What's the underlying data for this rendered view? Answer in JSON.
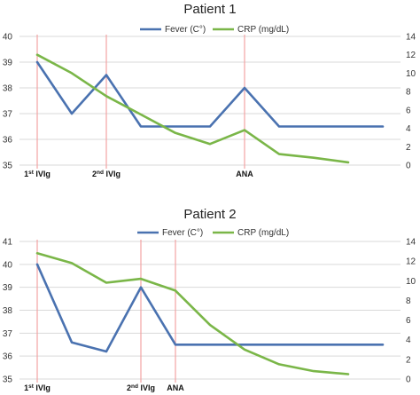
{
  "chart_data": [
    {
      "type": "line",
      "title": "Patient 1",
      "x": [
        1,
        2,
        3,
        4,
        5,
        6,
        7,
        8,
        9,
        10,
        11
      ],
      "series": [
        {
          "name": "Fever (C°)",
          "axis": "left",
          "color": "#4a72b0",
          "values": [
            39,
            37,
            38.5,
            36.5,
            36.5,
            36.5,
            38,
            36.5,
            36.5,
            36.5,
            36.5
          ]
        },
        {
          "name": "CRP (mg/dL)",
          "axis": "right",
          "color": "#7ab648",
          "values": [
            12,
            10,
            7.5,
            5.5,
            3.5,
            2.3,
            3.8,
            1.2,
            0.8,
            0.3,
            null
          ]
        }
      ],
      "y_left": {
        "min": 35,
        "max": 40,
        "ticks": [
          "35",
          "36",
          "37",
          "38",
          "39",
          "40"
        ]
      },
      "y_right": {
        "min": 0,
        "max": 14,
        "ticks": [
          "0",
          "2",
          "4",
          "6",
          "8",
          "10",
          "12",
          "14"
        ]
      },
      "events": [
        {
          "x": 1,
          "label": "1",
          "sup": "st",
          "suffix": " IVIg"
        },
        {
          "x": 3,
          "label": "2",
          "sup": "nd",
          "suffix": " IVIg"
        },
        {
          "x": 7,
          "label": "ANA",
          "sup": "",
          "suffix": ""
        }
      ],
      "grid": true,
      "legend_position": "top-right"
    },
    {
      "type": "line",
      "title": "Patient 2",
      "x": [
        1,
        2,
        3,
        4,
        5,
        6,
        7,
        8,
        9,
        10,
        11
      ],
      "series": [
        {
          "name": "Fever (C°)",
          "axis": "left",
          "color": "#4a72b0",
          "values": [
            40,
            36.6,
            36.2,
            39,
            36.5,
            36.5,
            36.5,
            36.5,
            36.5,
            36.5,
            36.5
          ]
        },
        {
          "name": "CRP (mg/dL)",
          "axis": "right",
          "color": "#7ab648",
          "values": [
            12.8,
            11.8,
            9.8,
            10.2,
            9,
            5.5,
            3,
            1.5,
            0.8,
            0.5,
            null
          ]
        }
      ],
      "y_left": {
        "min": 35,
        "max": 41,
        "ticks": [
          "35",
          "36",
          "37",
          "38",
          "39",
          "40",
          "41"
        ]
      },
      "y_right": {
        "min": 0,
        "max": 14,
        "ticks": [
          "0",
          "2",
          "4",
          "6",
          "8",
          "10",
          "12",
          "14"
        ]
      },
      "events": [
        {
          "x": 1,
          "label": "1",
          "sup": "st",
          "suffix": " IVIg"
        },
        {
          "x": 4,
          "label": "2",
          "sup": "nd",
          "suffix": " IVIg"
        },
        {
          "x": 5,
          "label": "ANA",
          "sup": "",
          "suffix": ""
        }
      ],
      "grid": true,
      "legend_position": "top-right"
    }
  ]
}
